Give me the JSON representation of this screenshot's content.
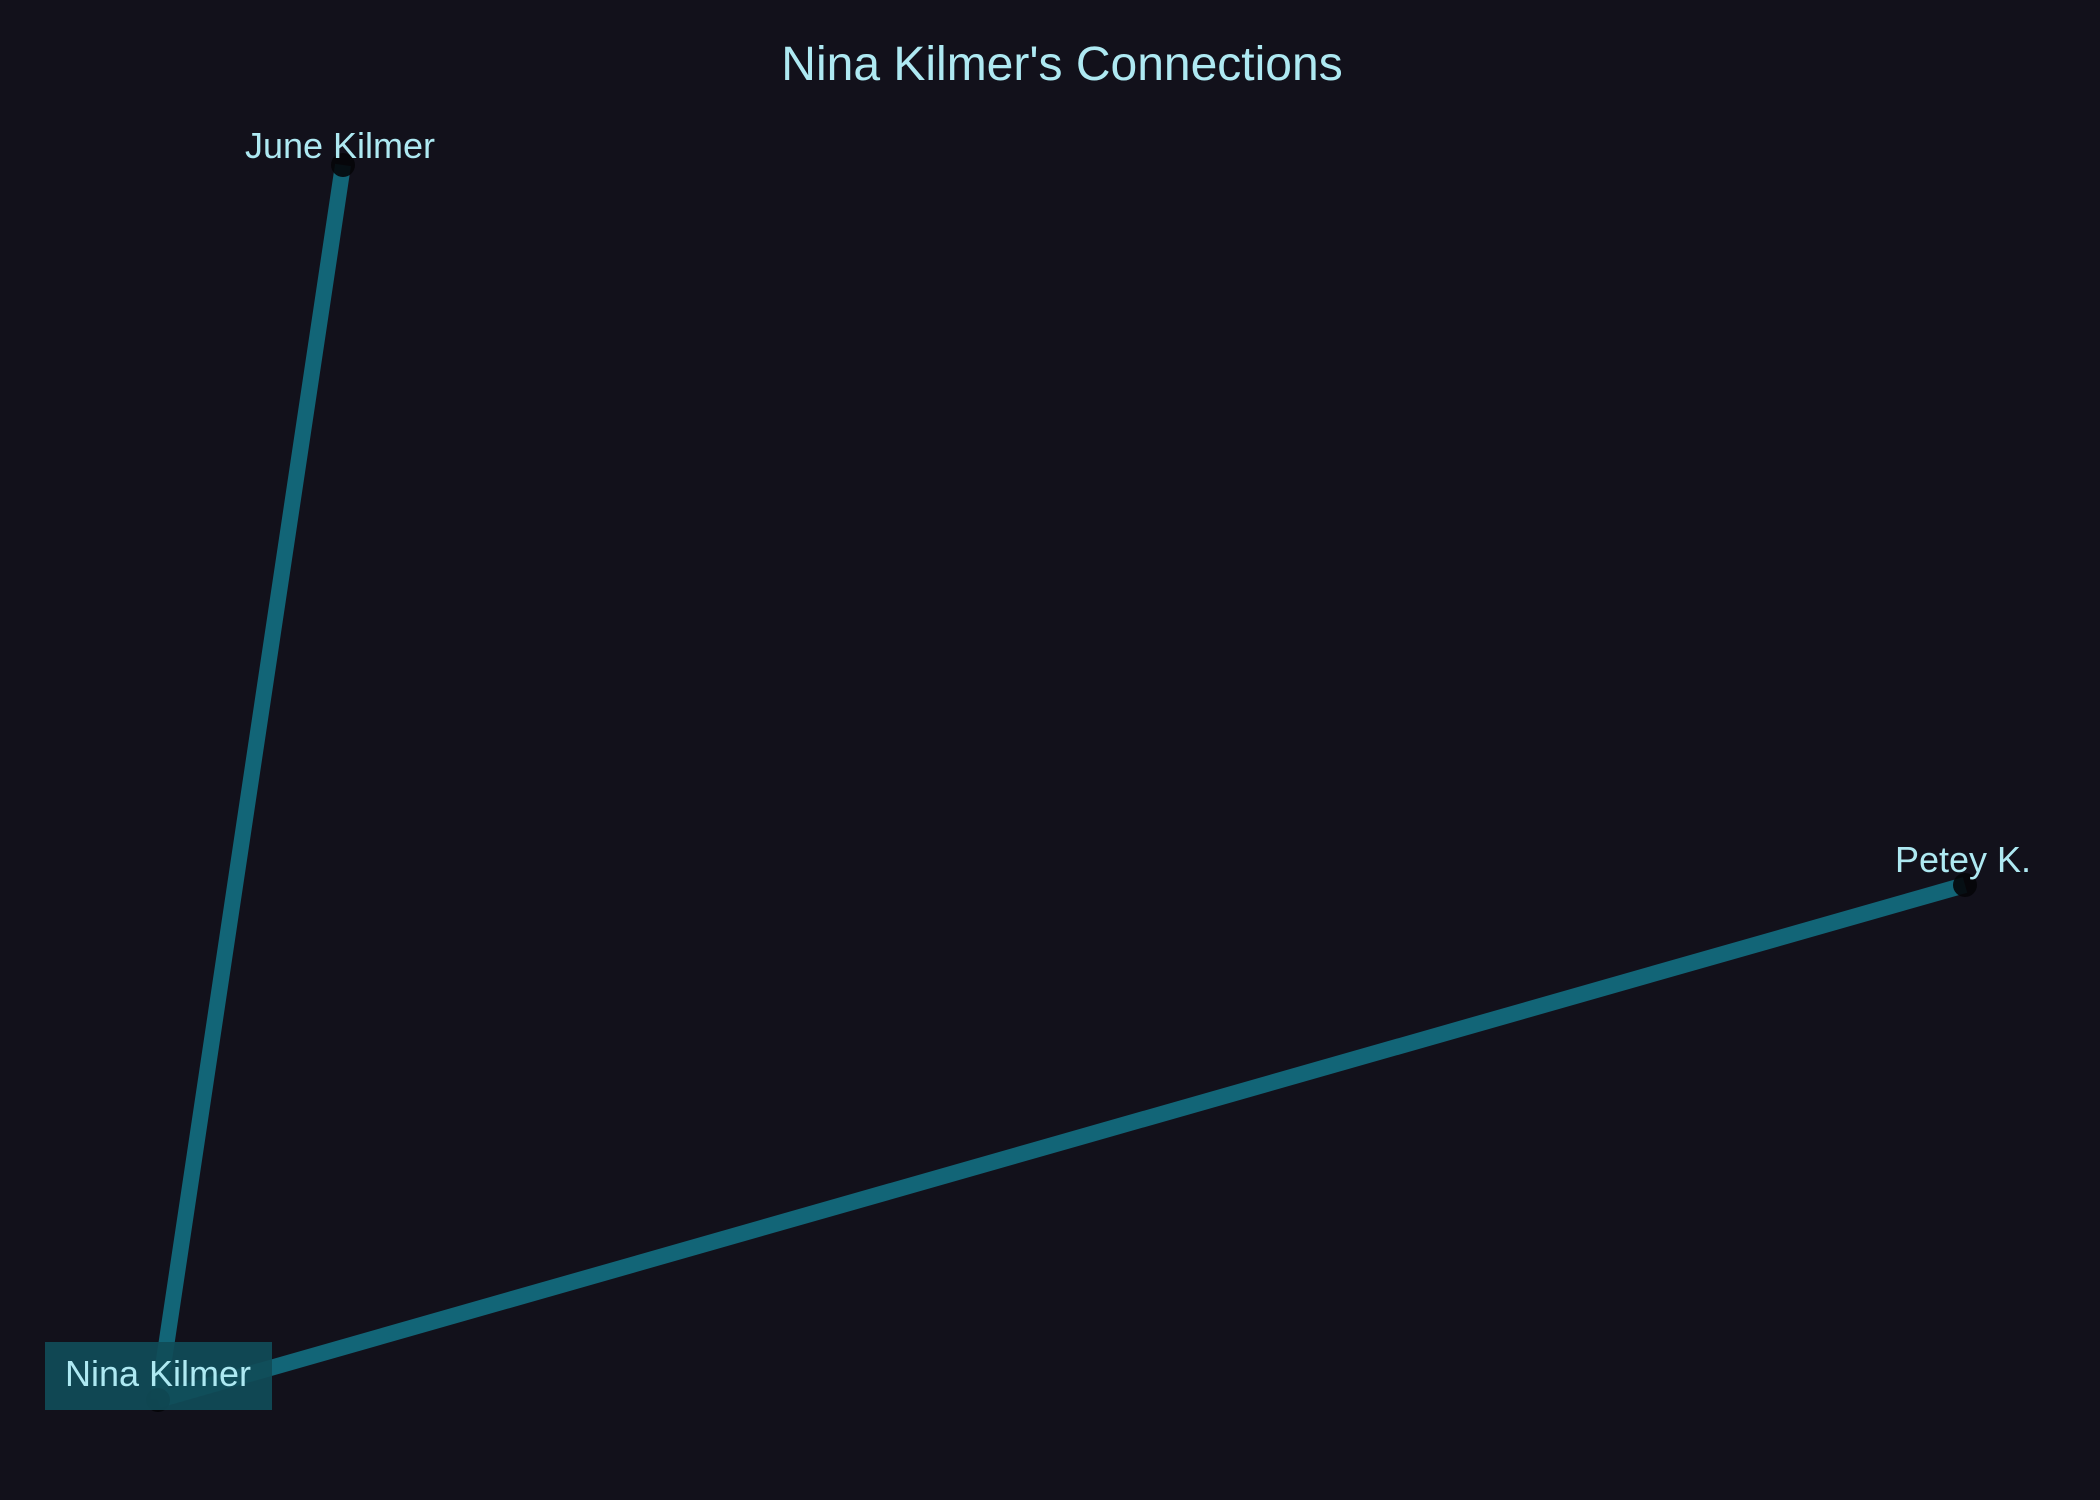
{
  "diagram": {
    "title": "Nina Kilmer's Connections",
    "colors": {
      "background": "#12111b",
      "edge": "#137488",
      "text": "#aee9f2",
      "highlight_box": "#104c58",
      "node": "#050509"
    },
    "nodes": [
      {
        "id": "nina",
        "label": "Nina Kilmer",
        "highlighted": true
      },
      {
        "id": "june",
        "label": "June Kilmer",
        "highlighted": false
      },
      {
        "id": "petey",
        "label": "Petey K.",
        "highlighted": false
      }
    ],
    "edges": [
      {
        "from": "nina",
        "to": "june"
      },
      {
        "from": "nina",
        "to": "petey"
      }
    ]
  }
}
